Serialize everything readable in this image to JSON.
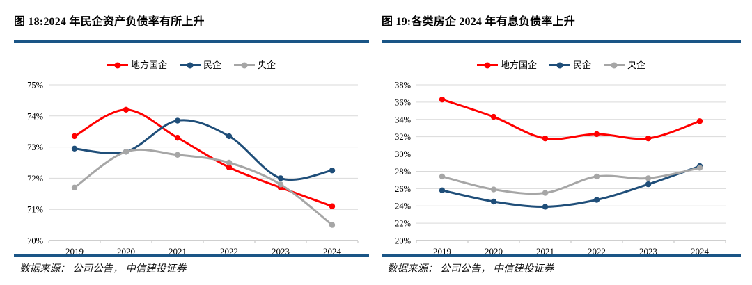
{
  "figures": [
    {
      "title": "图 18:2024 年民企资产负债率有所上升",
      "source": "数据来源： 公司公告， 中信建投证券"
    },
    {
      "title": "图 19:各类房企 2024 年有息负债率上升",
      "source": "数据来源： 公司公告， 中信建投证券"
    }
  ],
  "colors": {
    "rule_blue": "#1A5586",
    "grid": "#D9D9D9",
    "axis": "#BFBFBF",
    "tick_text": "#000000"
  },
  "chart_data": [
    {
      "type": "line",
      "title": "图 18:2024 年民企资产负债率有所上升",
      "categories": [
        "2019",
        "2020",
        "2021",
        "2022",
        "2023",
        "2024"
      ],
      "series": [
        {
          "name": "地方国企",
          "color": "#FF0000",
          "values": [
            73.35,
            74.2,
            73.3,
            72.35,
            71.7,
            71.1
          ]
        },
        {
          "name": "民企",
          "color": "#1F4E79",
          "values": [
            72.95,
            72.85,
            73.85,
            73.35,
            72.0,
            72.25
          ]
        },
        {
          "name": "央企",
          "color": "#A6A6A6",
          "values": [
            71.7,
            72.85,
            72.75,
            72.5,
            71.8,
            70.5
          ]
        }
      ],
      "ylim": [
        70,
        75
      ],
      "ytick_step": 1,
      "ytick_suffix": "%",
      "grid": "horizontal",
      "legend_position": "top",
      "smooth": true,
      "marker": "circle"
    },
    {
      "type": "line",
      "title": "图 19:各类房企 2024 年有息负债率上升",
      "categories": [
        "2019",
        "2020",
        "2021",
        "2022",
        "2023",
        "2024"
      ],
      "series": [
        {
          "name": "地方国企",
          "color": "#FF0000",
          "values": [
            36.3,
            34.3,
            31.8,
            32.3,
            31.8,
            33.8
          ]
        },
        {
          "name": "民企",
          "color": "#1F4E79",
          "values": [
            25.8,
            24.5,
            23.9,
            24.7,
            26.5,
            28.6
          ]
        },
        {
          "name": "央企",
          "color": "#A6A6A6",
          "values": [
            27.4,
            25.9,
            25.5,
            27.4,
            27.2,
            28.4
          ]
        }
      ],
      "ylim": [
        20,
        38
      ],
      "ytick_step": 2,
      "ytick_suffix": "%",
      "grid": "horizontal",
      "legend_position": "top",
      "smooth": true,
      "marker": "circle"
    }
  ]
}
